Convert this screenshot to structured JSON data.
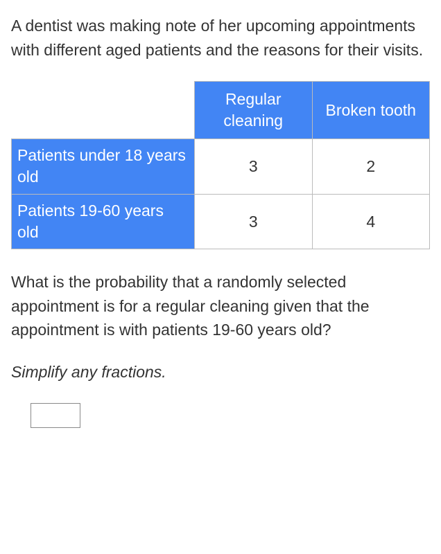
{
  "intro": "A dentist was making note of her upcoming appointments with different aged patients and the reasons for their visits.",
  "table": {
    "columns": [
      "Regular cleaning",
      "Broken tooth"
    ],
    "rows": [
      {
        "label": "Patients under 18 years old",
        "values": [
          "3",
          "2"
        ]
      },
      {
        "label": "Patients 19-60 years old",
        "values": [
          "3",
          "4"
        ]
      }
    ],
    "header_bg": "#4285f4",
    "header_fg": "#ffffff",
    "border_color": "#bbbbbb"
  },
  "question": "What is the probability that a randomly selected appointment is for a regular cleaning given that the appointment is with patients 19-60 years old?",
  "instruction": "Simplify any fractions.",
  "answer_value": ""
}
